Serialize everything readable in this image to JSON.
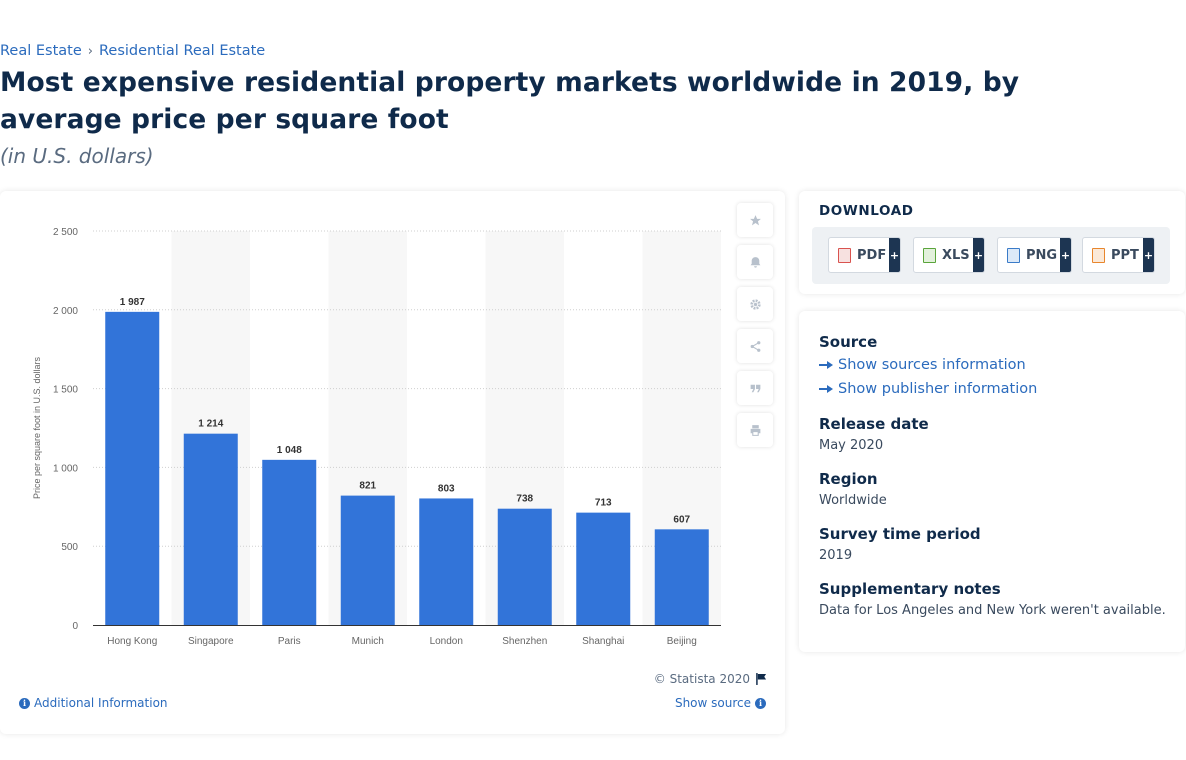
{
  "breadcrumb": {
    "item1": "Real Estate",
    "separator": "›",
    "item2": "Residential Real Estate"
  },
  "title": "Most expensive residential property markets worldwide in 2019, by average price per square foot",
  "subtitle": "(in U.S. dollars)",
  "chart_data": {
    "type": "bar",
    "categories": [
      "Hong Kong",
      "Singapore",
      "Paris",
      "Munich",
      "London",
      "Shenzhen",
      "Shanghai",
      "Beijing"
    ],
    "values": [
      1987,
      1214,
      1048,
      821,
      803,
      738,
      713,
      607
    ],
    "value_labels": [
      "1 987",
      "1 214",
      "1 048",
      "821",
      "803",
      "738",
      "713",
      "607"
    ],
    "xlabel": "",
    "ylabel": "Price per square foot in U.S. dollars",
    "ylim": [
      0,
      2500
    ],
    "yticks": [
      0,
      500,
      1000,
      1500,
      2000,
      2500
    ],
    "ytick_labels": [
      "0",
      "500",
      "1 000",
      "1 500",
      "2 000",
      "2 500"
    ],
    "bar_color": "#3274d9",
    "grid": true
  },
  "chart_footer": {
    "copyright": "© Statista 2020",
    "additional_info": "Additional Information",
    "show_source": "Show source"
  },
  "tools": [
    "star-icon",
    "bell-icon",
    "gear-icon",
    "share-icon",
    "quote-icon",
    "print-icon"
  ],
  "download": {
    "title": "DOWNLOAD",
    "buttons": [
      {
        "label": "PDF",
        "icon": "pdf-file-icon",
        "color": "#d9534f"
      },
      {
        "label": "XLS",
        "icon": "xls-file-icon",
        "color": "#5aa53b"
      },
      {
        "label": "PNG",
        "icon": "png-file-icon",
        "color": "#3a7bc8"
      },
      {
        "label": "PPT",
        "icon": "ppt-file-icon",
        "color": "#e8862d"
      }
    ],
    "plus": "+"
  },
  "meta": {
    "source_heading": "Source",
    "show_sources": "Show sources information",
    "show_publisher": "Show publisher information",
    "release_heading": "Release date",
    "release_value": "May 2020",
    "region_heading": "Region",
    "region_value": "Worldwide",
    "survey_heading": "Survey time period",
    "survey_value": "2019",
    "notes_heading": "Supplementary notes",
    "notes_value": "Data for Los Angeles and New York weren't available."
  },
  "colors": {
    "accent": "#2b6bbd",
    "heading": "#0f2a4a",
    "bar": "#3274d9"
  }
}
